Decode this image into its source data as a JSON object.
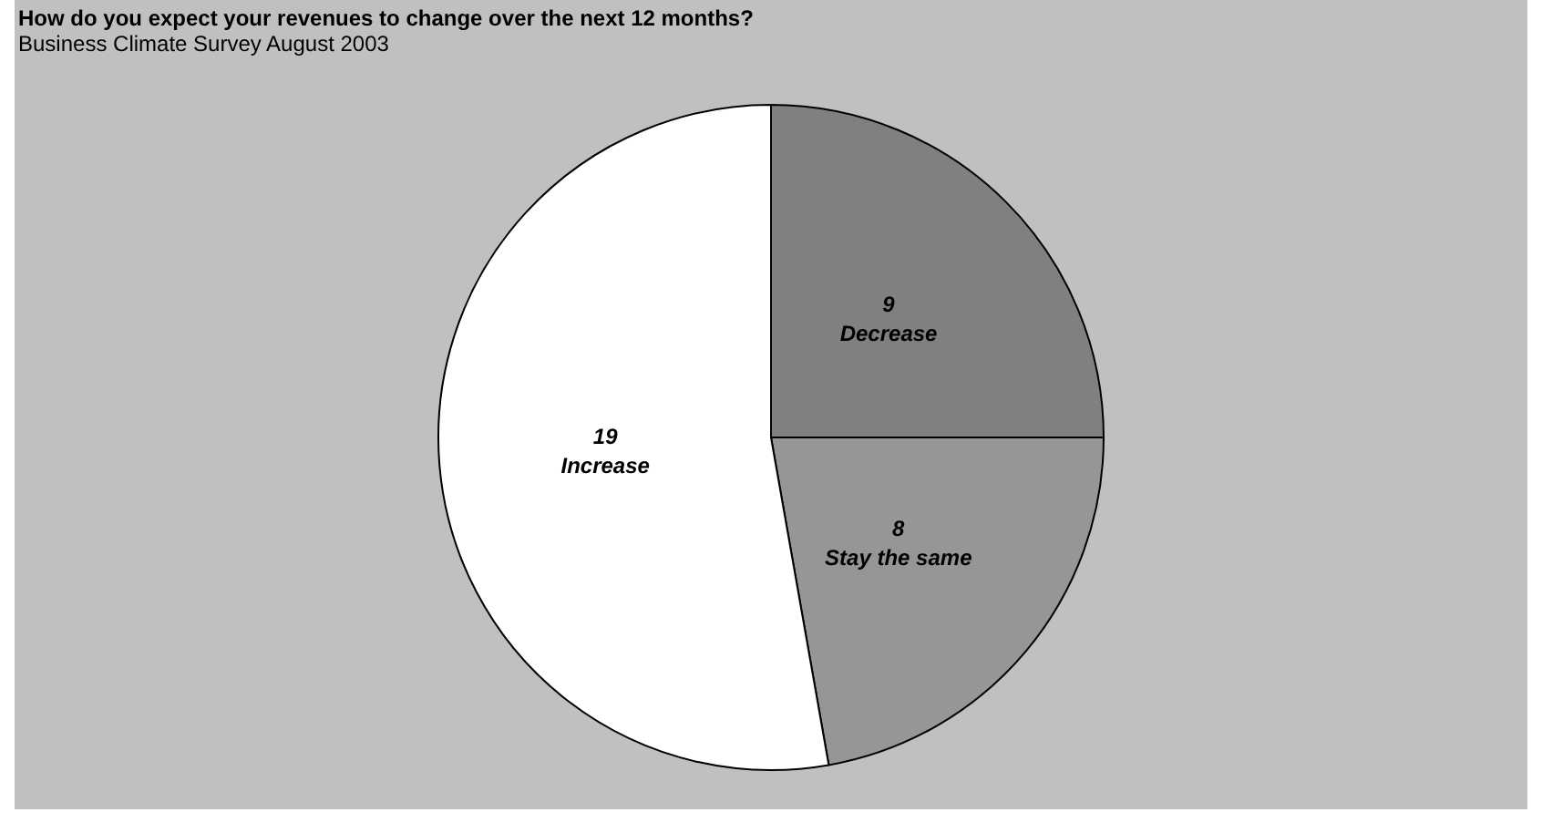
{
  "chart_data": {
    "type": "pie",
    "title": "How do you expect your revenues to change over the next 12 months?",
    "subtitle": "Business Climate Survey August 2003",
    "categories": [
      "Decrease",
      "Stay the same",
      "Increase"
    ],
    "values": [
      9,
      8,
      19
    ],
    "colors": [
      "#808080",
      "#969696",
      "#ffffff"
    ],
    "data_labels": true,
    "legend": false
  }
}
